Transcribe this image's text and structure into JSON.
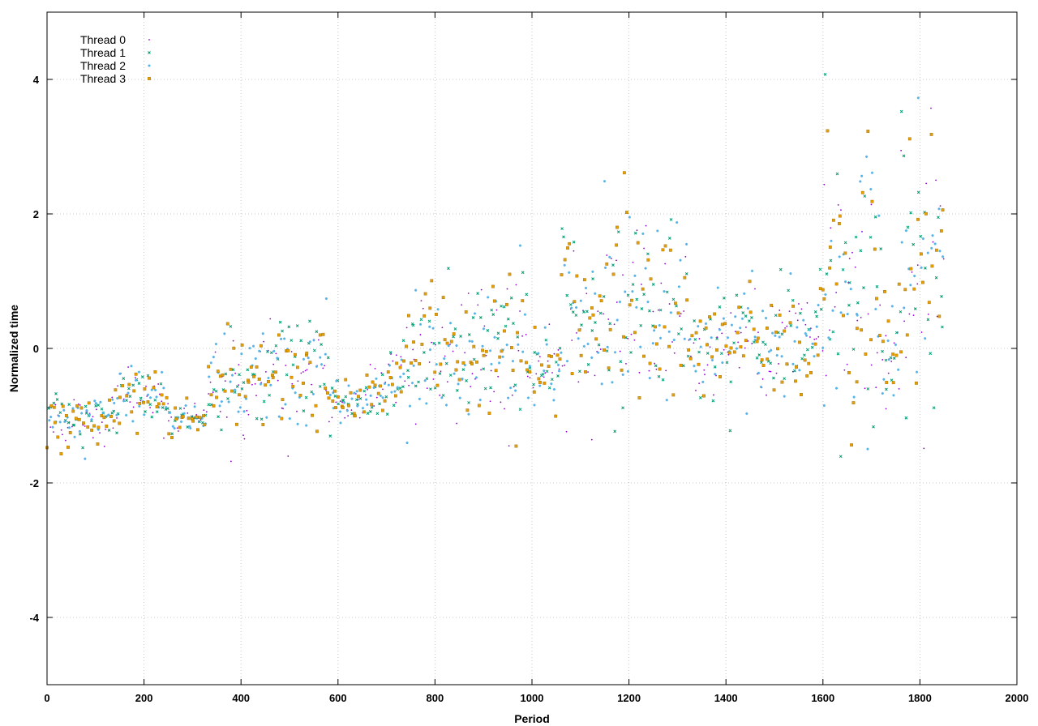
{
  "chart_data": {
    "type": "scatter",
    "title": "",
    "xlabel": "Period",
    "ylabel": "Normalized time",
    "xlim": [
      0,
      2000
    ],
    "ylim": [
      -5,
      5
    ],
    "x_ticks": [
      0,
      200,
      400,
      600,
      800,
      1000,
      1200,
      1400,
      1600,
      1800,
      2000
    ],
    "y_ticks": [
      -4,
      -2,
      0,
      2,
      4
    ],
    "grid": true,
    "legend_position": "top-left",
    "series": [
      {
        "name": "Thread 0",
        "marker": "dot",
        "color": "#9400d3"
      },
      {
        "name": "Thread 1",
        "marker": "cross",
        "color": "#009e73"
      },
      {
        "name": "Thread 2",
        "marker": "star",
        "color": "#56b4e9"
      },
      {
        "name": "Thread 3",
        "marker": "square",
        "color": "#e69f00"
      }
    ],
    "point_generation_note": "",
    "segments": [
      {
        "x0": 0,
        "x1": 150,
        "mean_start": -1.05,
        "mean_end": -1.0,
        "spread": 0.25
      },
      {
        "x0": 150,
        "x1": 250,
        "mean_start": -0.7,
        "mean_end": -0.8,
        "spread": 0.3
      },
      {
        "x0": 250,
        "x1": 330,
        "mean_start": -1.1,
        "mean_end": -1.0,
        "spread": 0.15
      },
      {
        "x0": 330,
        "x1": 460,
        "mean_start": -0.5,
        "mean_end": -0.5,
        "spread": 0.45
      },
      {
        "x0": 460,
        "x1": 580,
        "mean_start": -0.4,
        "mean_end": -0.3,
        "spread": 0.55
      },
      {
        "x0": 580,
        "x1": 700,
        "mean_start": -0.9,
        "mean_end": -0.6,
        "spread": 0.25
      },
      {
        "x0": 700,
        "x1": 740,
        "mean_start": -0.5,
        "mean_end": -0.3,
        "spread": 0.4
      },
      {
        "x0": 740,
        "x1": 860,
        "mean_start": -0.1,
        "mean_end": 0.1,
        "spread": 0.65
      },
      {
        "x0": 860,
        "x1": 990,
        "mean_start": 0.0,
        "mean_end": 0.2,
        "spread": 0.8
      },
      {
        "x0": 990,
        "x1": 1060,
        "mean_start": -0.4,
        "mean_end": -0.3,
        "spread": 0.4
      },
      {
        "x0": 1060,
        "x1": 1180,
        "mean_start": 0.5,
        "mean_end": 0.6,
        "spread": 0.9
      },
      {
        "x0": 1180,
        "x1": 1320,
        "mean_start": 0.4,
        "mean_end": 0.7,
        "spread": 1.0
      },
      {
        "x0": 1320,
        "x1": 1460,
        "mean_start": 0.0,
        "mean_end": 0.3,
        "spread": 0.5
      },
      {
        "x0": 1460,
        "x1": 1600,
        "mean_start": 0.0,
        "mean_end": 0.2,
        "spread": 0.5
      },
      {
        "x0": 1600,
        "x1": 1720,
        "mean_start": 0.9,
        "mean_end": 0.9,
        "spread": 1.4
      },
      {
        "x0": 1720,
        "x1": 1760,
        "mean_start": -0.2,
        "mean_end": 0.1,
        "spread": 0.6
      },
      {
        "x0": 1760,
        "x1": 1850,
        "mean_start": 1.2,
        "mean_end": 1.3,
        "spread": 1.4
      }
    ],
    "points_per_period_step": 5
  }
}
